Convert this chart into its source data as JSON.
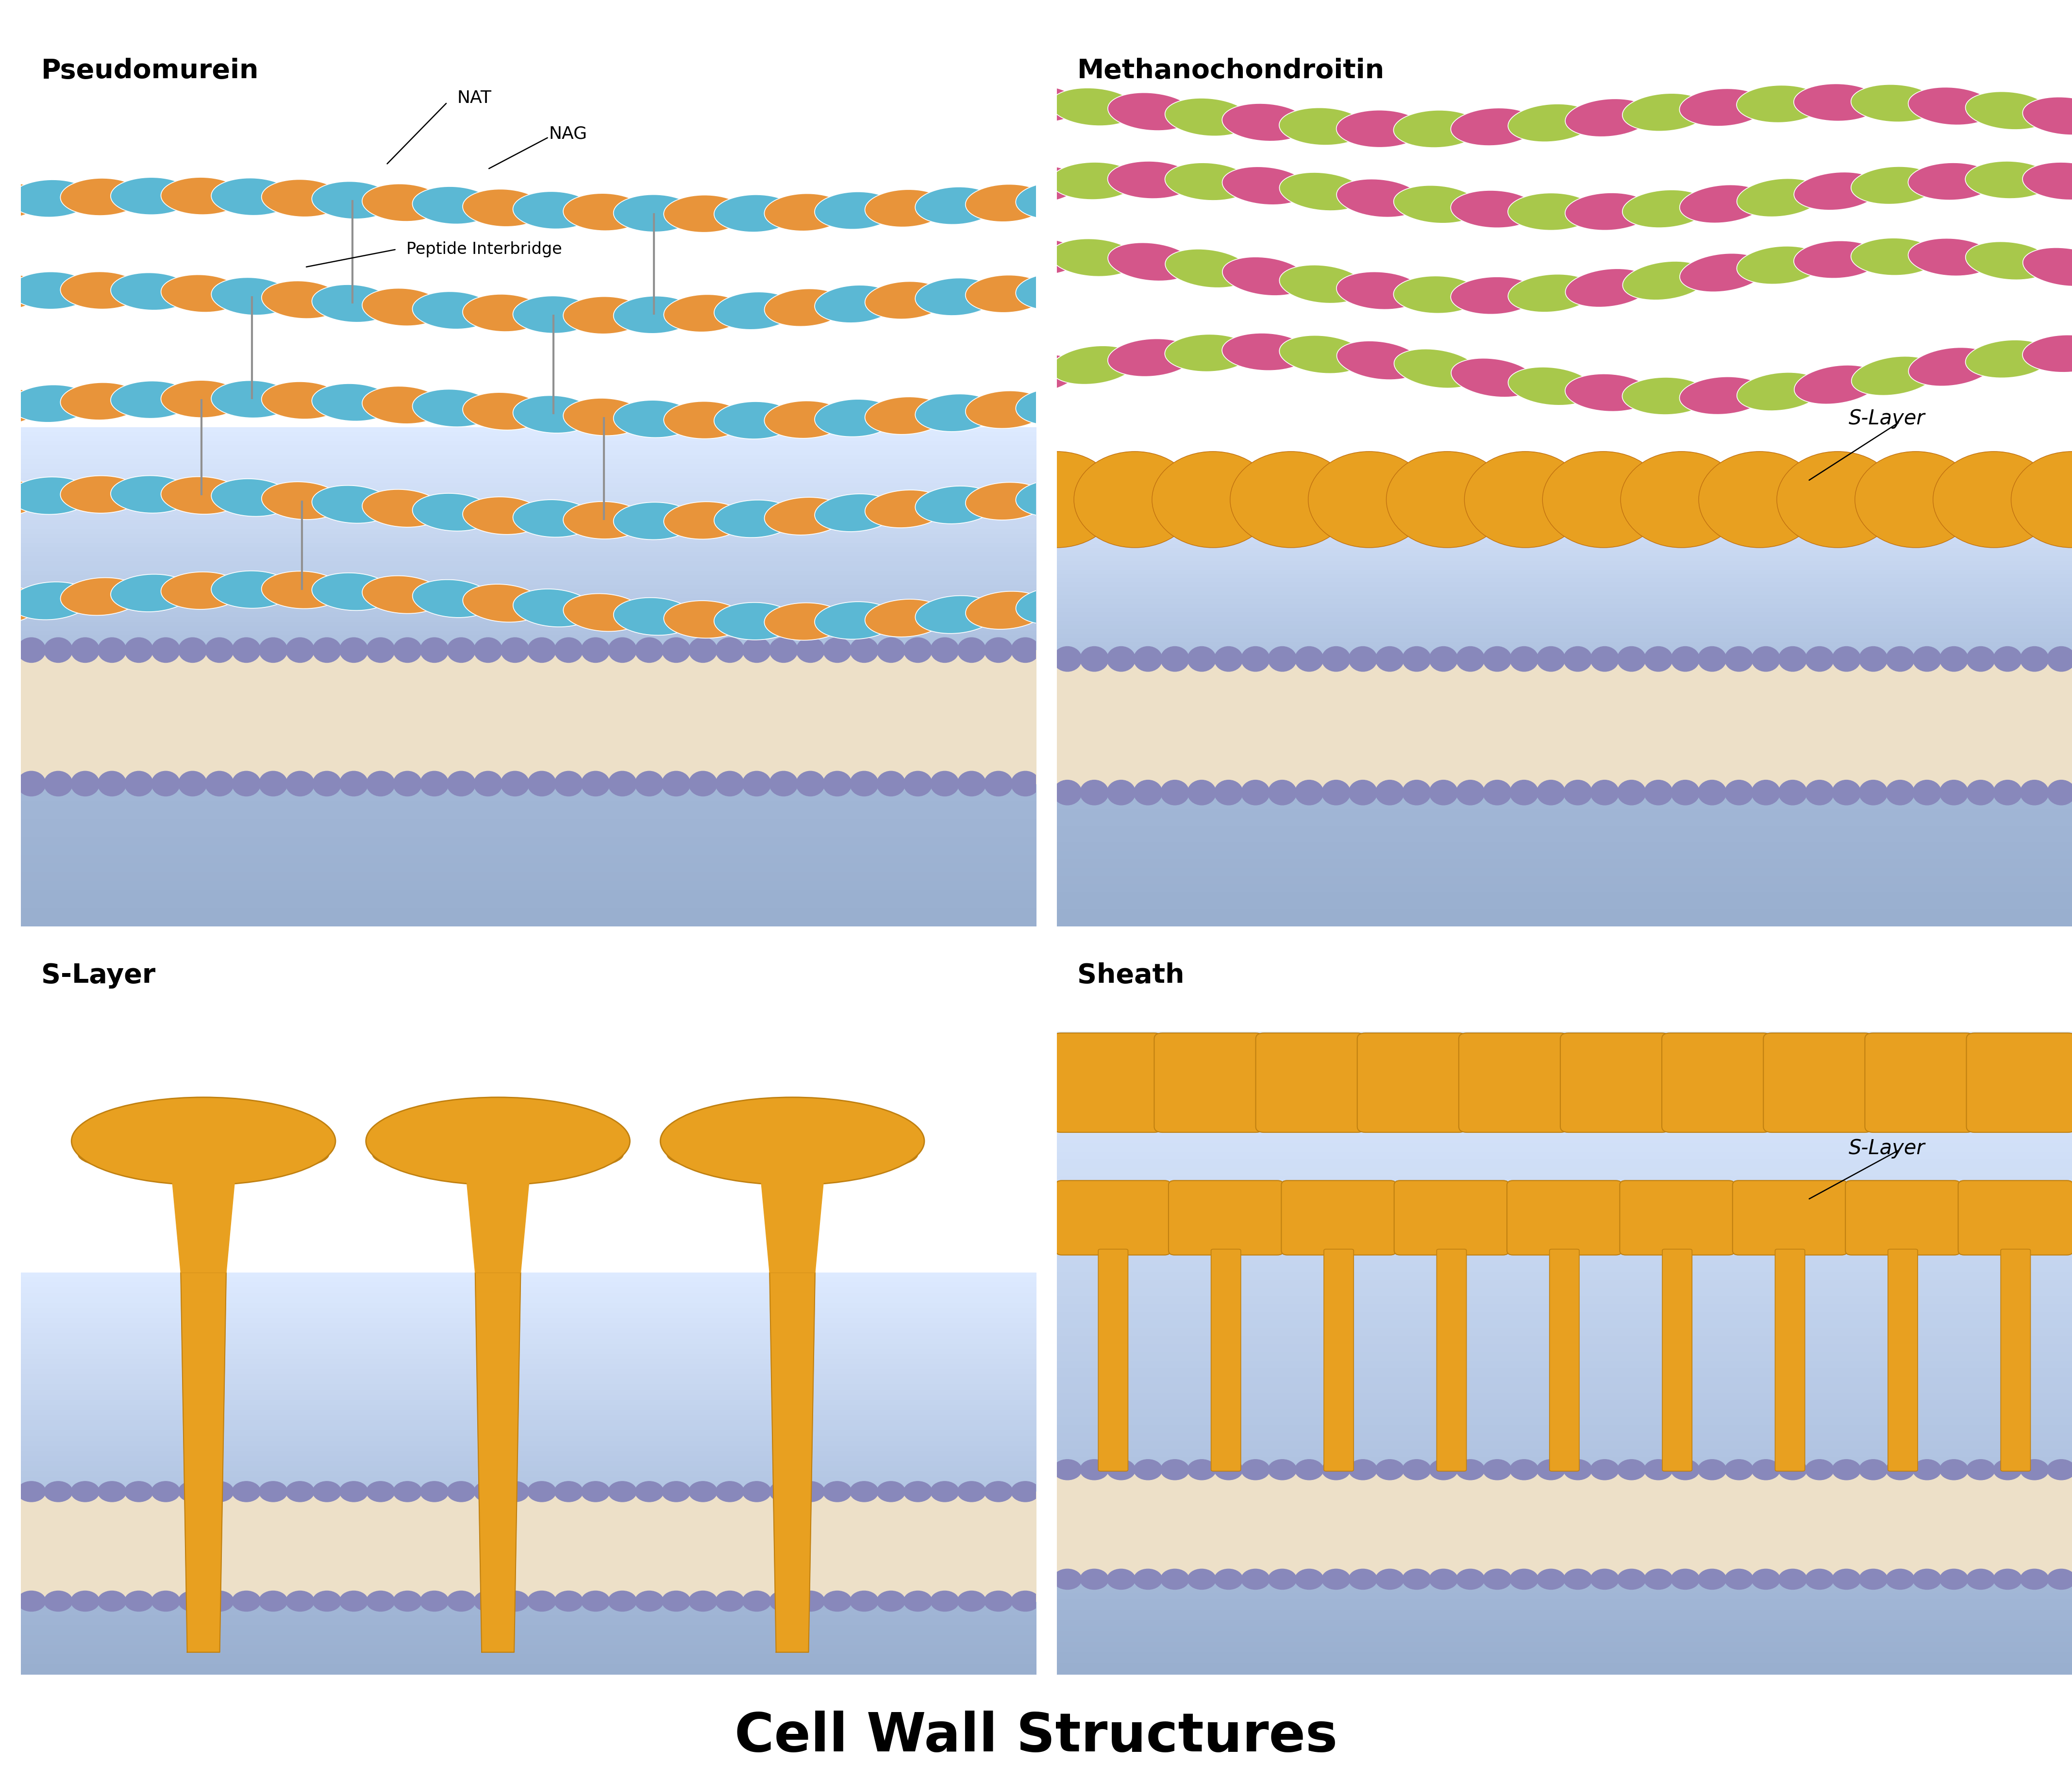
{
  "title": "Cell Wall Structures",
  "panel_titles": [
    "Pseudomurein",
    "Methanochondroitin",
    "S-Layer",
    "Sheath"
  ],
  "colors": {
    "orange": "#E8943A",
    "blue": "#5BB8D4",
    "green": "#A8C84B",
    "pink": "#D4568A",
    "gold": "#E8A020",
    "gold_dark": "#C07010",
    "gold_edge": "#C08010",
    "lipid_body": "#EDE0C8",
    "lipid_head": "#8888BB",
    "interbridge_color": "#909090",
    "bg_white": "#FFFFFF",
    "bg_blue1": "#D8E8F8",
    "bg_blue2": "#B8CCE8",
    "bg_blue3": "#A8BCD8",
    "bg_deeper": "#98AECE"
  },
  "background_color": "#FFFFFF"
}
